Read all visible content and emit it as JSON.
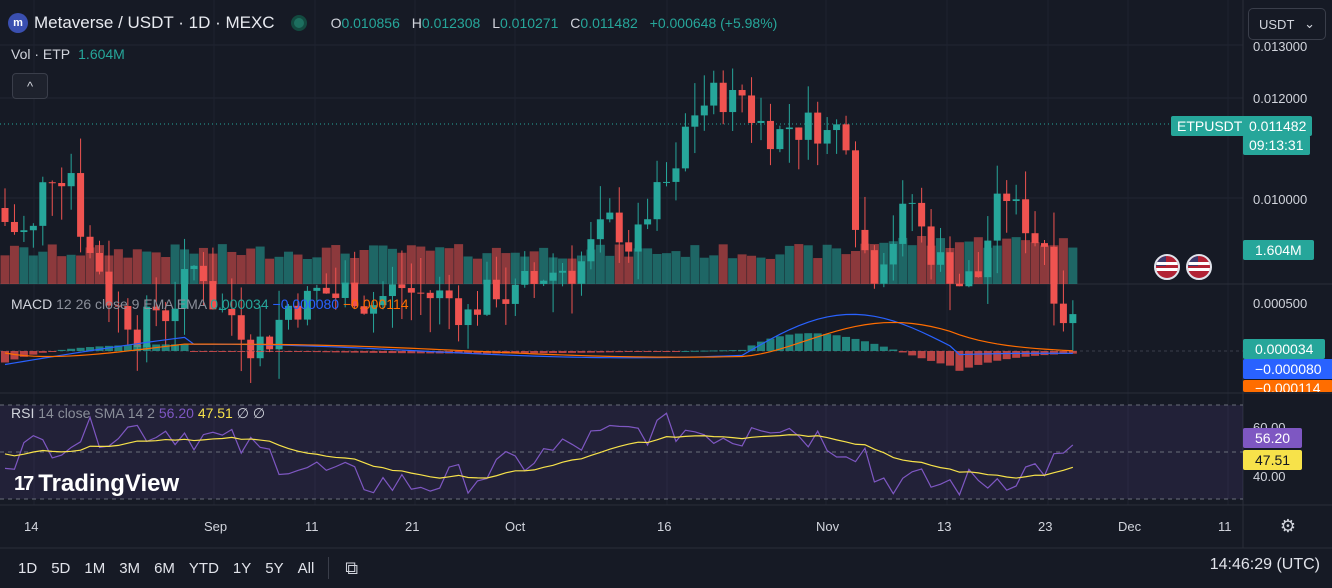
{
  "header": {
    "logo_letter": "m",
    "title": "Metaverse / USDT · 1D · MEXC",
    "ohlc": [
      {
        "label": "O",
        "value": "0.010856"
      },
      {
        "label": "H",
        "value": "0.012308"
      },
      {
        "label": "L",
        "value": "0.010271"
      },
      {
        "label": "C",
        "value": "0.011482"
      }
    ],
    "change": "+0.000648 (+5.98%)"
  },
  "volume_legend": {
    "label": "Vol · ETP",
    "value": "1.604M"
  },
  "currency_select": {
    "value": "USDT",
    "arrow": "⌄"
  },
  "collapse_icon": "^",
  "price_axis": [
    "0.013000",
    "0.012000",
    "0.010000"
  ],
  "price_tag": {
    "symbol": "ETPUSDT",
    "price": "0.011482",
    "countdown": "09:13:31"
  },
  "volume_tag": "1.604M",
  "macd": {
    "label": "MACD",
    "params": "12 26 close 9 EMA EMA",
    "hist": "0.000034",
    "macd": "−0.000080",
    "signal": "−0.000114",
    "axis": [
      "0.000500"
    ],
    "tags": {
      "hist": "0.000034",
      "macd": "−0.000080",
      "signal": "−0.000114"
    }
  },
  "rsi": {
    "label": "RSI",
    "params": "14 close SMA 14 2",
    "rsi": "56.20",
    "sma": "47.51",
    "extra": "∅ ∅",
    "axis": [
      "60.00",
      "40.00"
    ],
    "tags": {
      "rsi": "56.20",
      "sma": "47.51"
    }
  },
  "time_axis": [
    {
      "label": "14",
      "x": 34
    },
    {
      "label": "Sep",
      "x": 214
    },
    {
      "label": "11",
      "x": 315
    },
    {
      "label": "21",
      "x": 415
    },
    {
      "label": "Oct",
      "x": 515
    },
    {
      "label": "16",
      "x": 667
    },
    {
      "label": "Nov",
      "x": 826
    },
    {
      "label": "13",
      "x": 947
    },
    {
      "label": "23",
      "x": 1048
    },
    {
      "label": "Dec",
      "x": 1128
    },
    {
      "label": "11",
      "x": 1228
    }
  ],
  "watermark": "TradingView",
  "timeframes": [
    "1D",
    "5D",
    "1M",
    "3M",
    "6M",
    "YTD",
    "1Y",
    "5Y",
    "All"
  ],
  "clock": "14:46:29 (UTC)",
  "colors": {
    "up": "#26a69a",
    "down": "#ef5350",
    "macd": "#2962ff",
    "signal": "#ff6d00",
    "rsi": "#7e57c2",
    "rsi_sma": "#f7e24a"
  }
}
